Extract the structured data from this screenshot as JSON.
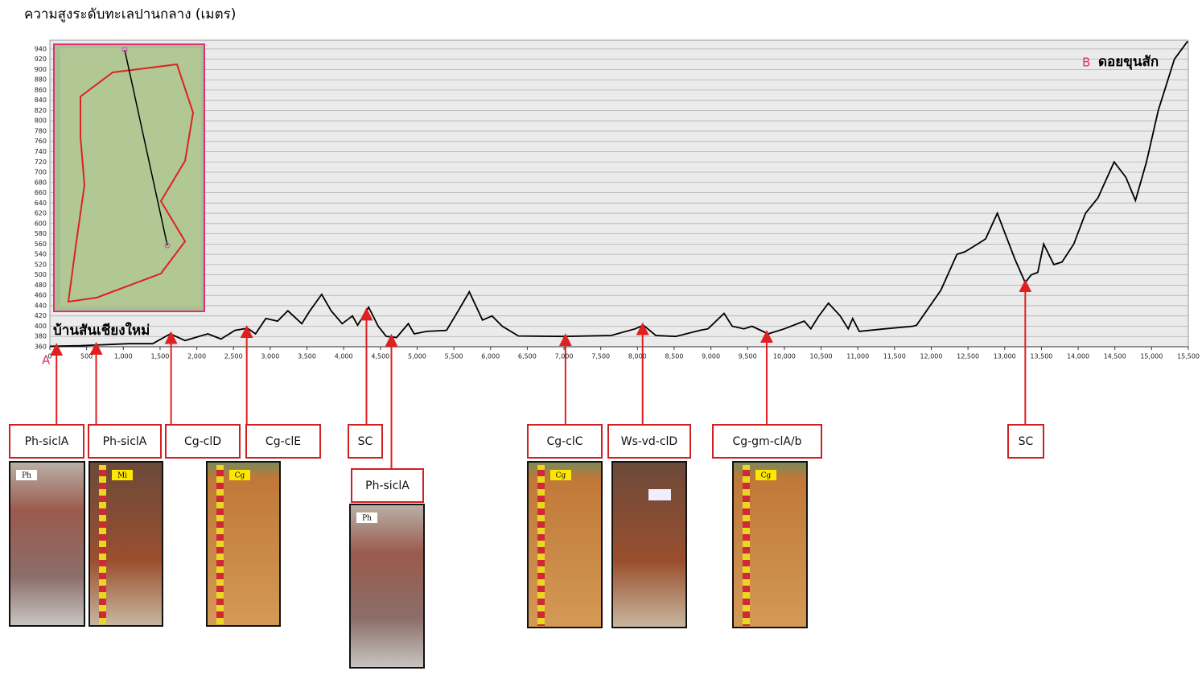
{
  "chart_data": {
    "type": "line",
    "title": "ความสูงระดับทะเลปานกลาง (เมตร)",
    "color": "#000000",
    "grid": true,
    "x": [
      0,
      420,
      1070,
      1400,
      1640,
      1840,
      2150,
      2330,
      2520,
      2690,
      2800,
      2940,
      3100,
      3240,
      3430,
      3540,
      3700,
      3830,
      3980,
      4120,
      4190,
      4340,
      4470,
      4580,
      4720,
      4880,
      4960,
      5130,
      5400,
      5560,
      5710,
      5890,
      6020,
      6160,
      6380,
      6990,
      7640,
      7970,
      8080,
      8250,
      8520,
      8850,
      8960,
      9180,
      9290,
      9450,
      9560,
      9780,
      10000,
      10270,
      10360,
      10470,
      10600,
      10760,
      10870,
      10930,
      11020,
      11370,
      11750,
      11800,
      12130,
      12350,
      12460,
      12630,
      12740,
      12900,
      13060,
      13140,
      13280,
      13360,
      13450,
      13530,
      13670,
      13780,
      13940,
      14100,
      14270,
      14490,
      14650,
      14780,
      14930,
      15090,
      15310,
      15490
    ],
    "values": [
      361,
      362,
      366,
      366,
      385,
      372,
      385,
      375,
      392,
      396,
      385,
      415,
      410,
      430,
      405,
      430,
      462,
      430,
      405,
      420,
      402,
      437,
      400,
      380,
      378,
      405,
      385,
      390,
      392,
      430,
      467,
      412,
      420,
      400,
      381,
      380,
      382,
      395,
      402,
      382,
      380,
      392,
      395,
      425,
      400,
      395,
      400,
      385,
      395,
      410,
      395,
      420,
      445,
      420,
      395,
      415,
      390,
      395,
      400,
      402,
      470,
      540,
      545,
      560,
      570,
      620,
      560,
      530,
      485,
      500,
      505,
      560,
      520,
      525,
      560,
      620,
      650,
      720,
      690,
      645,
      720,
      820,
      920,
      955
    ],
    "xlim": [
      0,
      15500
    ],
    "ylim": [
      360,
      957
    ],
    "xticks": [
      0,
      500,
      {
        "value": 1000,
        "label": "1,000"
      },
      {
        "value": 1500,
        "label": "1,500"
      },
      {
        "value": 2000,
        "label": "2,000"
      },
      {
        "value": 2500,
        "label": "2,500"
      },
      {
        "value": 3000,
        "label": "3,000"
      },
      {
        "value": 3500,
        "label": "3,500"
      },
      {
        "value": 4000,
        "label": "4,000"
      },
      {
        "value": 4500,
        "label": "4,500"
      },
      {
        "value": 5000,
        "label": "5,000"
      },
      {
        "value": 5500,
        "label": "5,500"
      },
      {
        "value": 6000,
        "label": "6,000"
      },
      {
        "value": 6500,
        "label": "6,500"
      },
      {
        "value": 7000,
        "label": "7,000"
      },
      {
        "value": 7500,
        "label": "7,500"
      },
      {
        "value": 8000,
        "label": "8,000"
      },
      {
        "value": 8500,
        "label": "8,500"
      },
      {
        "value": 9000,
        "label": "9,000"
      },
      {
        "value": 9500,
        "label": "9,500"
      },
      {
        "value": 10000,
        "label": "10,000"
      },
      {
        "value": 10500,
        "label": "10,500"
      },
      {
        "value": 11000,
        "label": "11,000"
      },
      {
        "value": 11500,
        "label": "11,500"
      },
      {
        "value": 12000,
        "label": "12,000"
      },
      {
        "value": 12500,
        "label": "12,500"
      },
      {
        "value": 13000,
        "label": "13,000"
      },
      {
        "value": 13500,
        "label": "13,500"
      },
      {
        "value": 14000,
        "label": "14,000"
      },
      {
        "value": 14500,
        "label": "14,500"
      },
      {
        "value": 15000,
        "label": "15,000"
      },
      {
        "value": 15500,
        "label": "15,500"
      }
    ],
    "yticks": [
      360,
      380,
      400,
      420,
      440,
      460,
      480,
      500,
      520,
      540,
      560,
      580,
      600,
      620,
      640,
      660,
      680,
      700,
      720,
      740,
      760,
      780,
      800,
      820,
      840,
      860,
      880,
      900,
      920,
      940
    ],
    "start_marker": "A",
    "end_marker": "B",
    "start_place": "บ้านสันเชียงใหม่",
    "end_place": "ดอยขุนสัก",
    "annotations": [
      {
        "label": "Ph-siclA",
        "x": 90,
        "photo_tag": "Ph"
      },
      {
        "label": "Ph-siclA",
        "x": 630,
        "photo_tag": "Mi"
      },
      {
        "label": "Cg-clD",
        "x": 1650,
        "photo_tag": "Cg"
      },
      {
        "label": "Cg-clE",
        "x": 2680
      },
      {
        "label": "SC",
        "x": 4310
      },
      {
        "label": "Ph-siclA",
        "x": 4650,
        "photo_tag": "Ph"
      },
      {
        "label": "Cg-clC",
        "x": 7020,
        "photo_tag": "Cg"
      },
      {
        "label": "Ws-vd-clD",
        "x": 8070
      },
      {
        "label": "Cg-gm-clA/b",
        "x": 9760,
        "photo_tag": "Cg"
      },
      {
        "label": "SC",
        "x": 13280
      }
    ]
  }
}
